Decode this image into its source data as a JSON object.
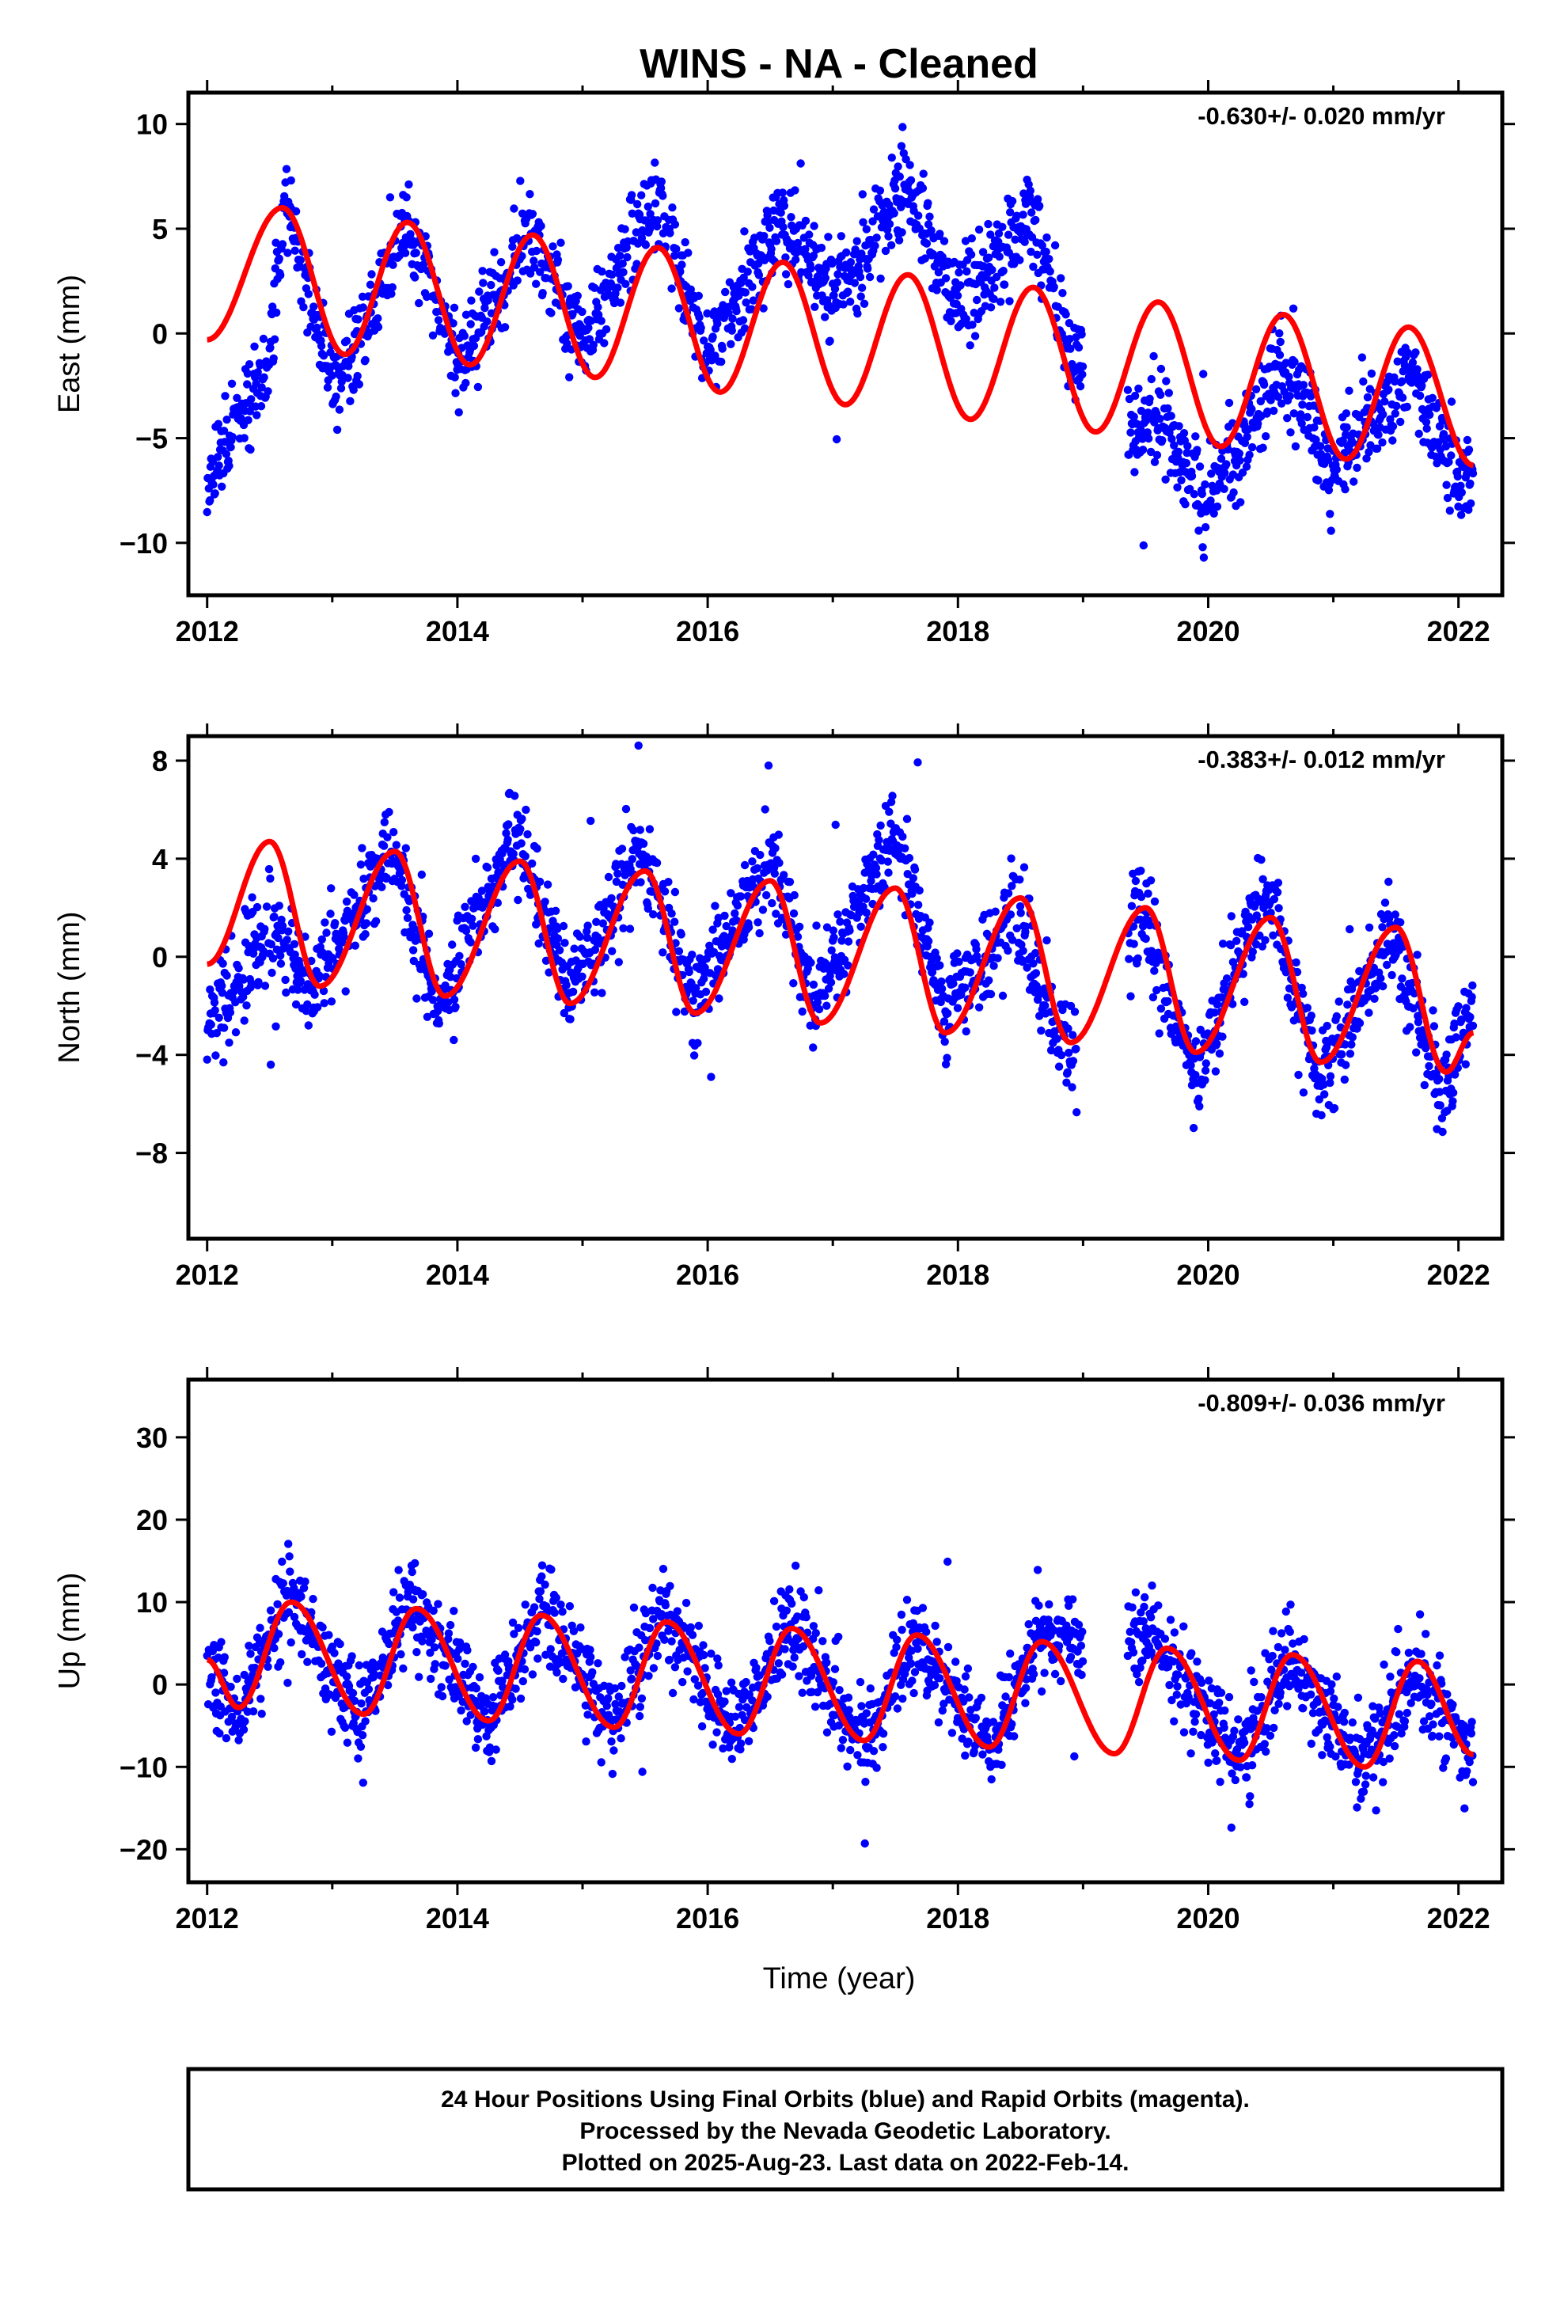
{
  "title": "WINS  - NA - Cleaned",
  "colors": {
    "data": "#0000ff",
    "fit": "#ff0000",
    "axis": "#000000"
  },
  "footer": {
    "line1": "24 Hour Positions Using Final Orbits (blue) and Rapid Orbits (magenta).",
    "line2": "Processed by the Nevada Geodetic Laboratory.",
    "line3": "Plotted on 2025-Aug-23. Last data on 2022-Feb-14."
  },
  "chart_data": [
    {
      "type": "scatter",
      "component": "East",
      "ylabel": "East (mm)",
      "xlabel": "",
      "rate_label": "-0.630+/- 0.020 mm/yr",
      "xlim": [
        2011.85,
        2022.35
      ],
      "ylim": [
        -12.5,
        11.5
      ],
      "xticks": [
        2012,
        2014,
        2016,
        2018,
        2020,
        2022
      ],
      "yticks": [
        -10,
        -5,
        0,
        5,
        10
      ],
      "data_gap": [
        2019.0,
        2019.35
      ],
      "series": [
        {
          "role": "daily positions",
          "x": [
            2012.0,
            2012.25,
            2012.5,
            2012.62,
            2012.75,
            2013.0,
            2013.25,
            2013.6,
            2014.0,
            2014.6,
            2015.0,
            2015.6,
            2016.0,
            2016.6,
            2017.0,
            2017.6,
            2018.0,
            2018.6,
            2018.9,
            2019.4,
            2019.6,
            2020.0,
            2020.6,
            2021.0,
            2021.6,
            2022.0,
            2022.12
          ],
          "y": [
            -7.5,
            -4.0,
            -1.5,
            6.5,
            3.5,
            -2.0,
            0.0,
            5.5,
            -1.5,
            5.0,
            -0.5,
            6.5,
            -1.0,
            5.5,
            1.5,
            7.0,
            1.5,
            5.5,
            -1.0,
            -4.5,
            -4.0,
            -8.0,
            -1.5,
            -6.5,
            -2.0,
            -7.0,
            -6.5
          ]
        },
        {
          "role": "model fit",
          "x": [
            2012.0,
            2012.6,
            2013.1,
            2013.6,
            2014.1,
            2014.6,
            2015.1,
            2015.6,
            2016.1,
            2016.6,
            2017.1,
            2017.6,
            2018.1,
            2018.6,
            2019.1,
            2019.6,
            2020.1,
            2020.6,
            2021.1,
            2021.6,
            2022.12
          ],
          "y": [
            -0.3,
            6.0,
            -1.0,
            5.3,
            -1.5,
            4.7,
            -2.1,
            4.1,
            -2.8,
            3.4,
            -3.4,
            2.8,
            -4.1,
            2.2,
            -4.7,
            1.5,
            -5.4,
            0.9,
            -6.0,
            0.3,
            -6.3
          ]
        }
      ]
    },
    {
      "type": "scatter",
      "component": "North",
      "ylabel": "North (mm)",
      "xlabel": "",
      "rate_label": "-0.383+/- 0.012 mm/yr",
      "xlim": [
        2011.85,
        2022.35
      ],
      "ylim": [
        -11.5,
        9.0
      ],
      "xticks": [
        2012,
        2014,
        2016,
        2018,
        2020,
        2022
      ],
      "yticks": [
        -8,
        -4,
        0,
        4,
        8
      ],
      "data_gap": [
        2018.95,
        2019.35
      ],
      "series": [
        {
          "role": "daily positions",
          "x": [
            2012.0,
            2012.25,
            2012.5,
            2012.85,
            2013.45,
            2013.85,
            2014.45,
            2014.9,
            2015.45,
            2015.9,
            2016.5,
            2016.85,
            2017.5,
            2017.9,
            2018.45,
            2018.9,
            2019.45,
            2019.9,
            2020.45,
            2020.9,
            2021.45,
            2021.85,
            2022.12
          ],
          "y": [
            -3.0,
            -1.0,
            1.5,
            -1.5,
            4.5,
            -2.0,
            5.0,
            -1.5,
            4.5,
            -2.0,
            4.5,
            -2.0,
            5.0,
            -2.5,
            2.0,
            -4.5,
            2.0,
            -5.0,
            3.0,
            -5.0,
            1.0,
            -5.5,
            -2.0
          ]
        },
        {
          "role": "model fit",
          "x": [
            2012.0,
            2012.5,
            2012.9,
            2013.5,
            2013.9,
            2014.5,
            2014.9,
            2015.5,
            2015.9,
            2016.5,
            2016.9,
            2017.5,
            2017.9,
            2018.5,
            2018.9,
            2019.5,
            2019.9,
            2020.5,
            2020.9,
            2021.5,
            2021.9,
            2022.12
          ],
          "y": [
            -0.3,
            4.7,
            -1.2,
            4.3,
            -1.6,
            3.9,
            -1.9,
            3.5,
            -2.3,
            3.1,
            -2.7,
            2.8,
            -3.1,
            2.4,
            -3.5,
            2.0,
            -3.9,
            1.6,
            -4.3,
            1.2,
            -4.7,
            -3.1
          ]
        }
      ]
    },
    {
      "type": "scatter",
      "component": "Up",
      "ylabel": "Up (mm)",
      "xlabel": "Time (year)",
      "rate_label": "-0.809+/- 0.036 mm/yr",
      "xlim": [
        2011.85,
        2022.35
      ],
      "ylim": [
        -24.0,
        37.0
      ],
      "xticks": [
        2012,
        2014,
        2016,
        2018,
        2020,
        2022
      ],
      "yticks": [
        -20,
        -10,
        0,
        10,
        20,
        30
      ],
      "data_gap": [
        2019.0,
        2019.35
      ],
      "series": [
        {
          "role": "daily positions",
          "x": [
            2012.0,
            2012.25,
            2012.65,
            2013.2,
            2013.65,
            2014.25,
            2014.65,
            2015.25,
            2015.65,
            2016.25,
            2016.65,
            2017.25,
            2017.65,
            2018.25,
            2018.65,
            2019.6,
            2020.25,
            2020.65,
            2021.25,
            2021.65,
            2022.12
          ],
          "y": [
            2.0,
            -4.0,
            11.0,
            -4.0,
            10.0,
            -5.0,
            9.0,
            -5.0,
            9.0,
            -6.0,
            7.0,
            -7.0,
            6.0,
            -7.5,
            5.0,
            5.0,
            -9.0,
            3.0,
            -10.0,
            2.0,
            -9.0
          ]
        },
        {
          "role": "model fit",
          "x": [
            2012.0,
            2012.25,
            2012.67,
            2013.25,
            2013.67,
            2014.25,
            2014.67,
            2015.25,
            2015.67,
            2016.25,
            2016.67,
            2017.25,
            2017.67,
            2018.25,
            2018.67,
            2019.25,
            2019.67,
            2020.25,
            2020.67,
            2021.25,
            2021.67,
            2022.12
          ],
          "y": [
            3.0,
            -2.8,
            10.0,
            -3.6,
            9.2,
            -4.4,
            8.4,
            -5.2,
            7.6,
            -6.0,
            6.8,
            -6.8,
            6.0,
            -7.6,
            5.2,
            -8.4,
            4.4,
            -9.2,
            3.6,
            -10.0,
            2.8,
            -8.5
          ]
        }
      ]
    }
  ]
}
